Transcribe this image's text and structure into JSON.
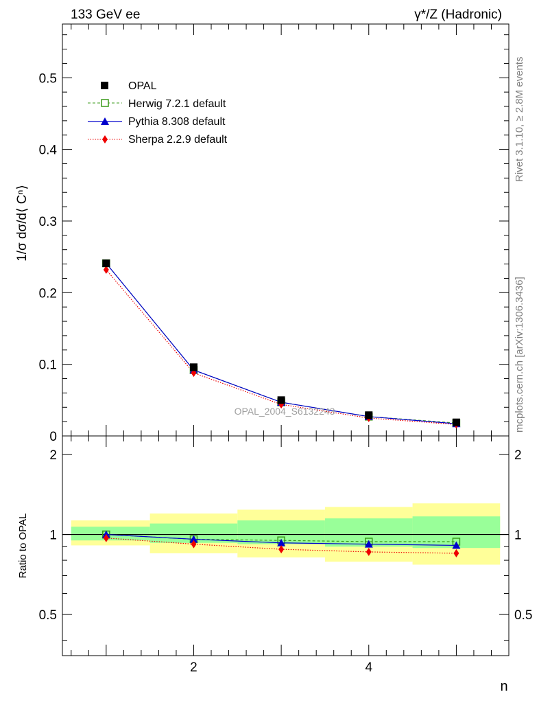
{
  "header": {
    "left": "133 GeV ee",
    "right": "γ*/Z (Hadronic)"
  },
  "side_labels": {
    "rivet": "Rivet 3.1.10, ≥ 2.8M events",
    "mcplots": "mcplots.cern.ch [arXiv:1306.3436]"
  },
  "watermark": "OPAL_2004_S6132243",
  "main_y_ticks": [
    "0",
    "0.1",
    "0.2",
    "0.3",
    "0.4",
    "0.5"
  ],
  "ratio_y_ticks": [
    "0.5",
    "1",
    "2"
  ],
  "x_ticks": [
    "2",
    "4"
  ],
  "legend": {
    "opal": "OPAL",
    "herwig": "Herwig 7.2.1 default",
    "pythia": "Pythia 8.308 default",
    "sherpa": "Sherpa 2.2.9 default"
  },
  "colors": {
    "data": "#000000",
    "herwig": "#3a9a1a",
    "pythia": "#0000cc",
    "sherpa": "#ee0000",
    "band_inner": "#99ff99",
    "band_outer": "#ffff99"
  },
  "chart_data": [
    {
      "type": "line",
      "ylabel": "1/σ dσ/d⟨ Cⁿ⟩",
      "xlabel": "n",
      "xlim": [
        0.5,
        5.6
      ],
      "ylim": [
        0,
        0.575
      ],
      "x": [
        1,
        2,
        3,
        4,
        5
      ],
      "series": [
        {
          "name": "OPAL",
          "values": [
            0.241,
            0.096,
            0.05,
            0.029,
            0.019
          ]
        },
        {
          "name": "Herwig 7.2.1 default",
          "values": [
            0.241,
            0.092,
            0.047,
            0.027,
            0.018
          ]
        },
        {
          "name": "Pythia 8.308 default",
          "values": [
            0.241,
            0.092,
            0.047,
            0.027,
            0.017
          ]
        },
        {
          "name": "Sherpa 2.2.9 default",
          "values": [
            0.232,
            0.088,
            0.044,
            0.025,
            0.016
          ]
        }
      ]
    },
    {
      "type": "line",
      "ylabel": "Ratio to OPAL",
      "xlabel": "n",
      "xlim": [
        0.5,
        5.6
      ],
      "ylim": [
        0.35,
        2.35
      ],
      "scale": "log",
      "x": [
        1,
        2,
        3,
        4,
        5
      ],
      "series": [
        {
          "name": "Herwig 7.2.1 default",
          "values": [
            1.0,
            0.96,
            0.95,
            0.94,
            0.94
          ]
        },
        {
          "name": "Pythia 8.308 default",
          "values": [
            1.0,
            0.96,
            0.93,
            0.92,
            0.91
          ]
        },
        {
          "name": "Sherpa 2.2.9 default",
          "values": [
            0.97,
            0.92,
            0.88,
            0.86,
            0.85
          ]
        }
      ],
      "bands": {
        "inner": [
          [
            0.95,
            1.07
          ],
          [
            0.93,
            1.1
          ],
          [
            0.92,
            1.13
          ],
          [
            0.9,
            1.15
          ],
          [
            0.89,
            1.17
          ]
        ],
        "outer": [
          [
            0.91,
            1.13
          ],
          [
            0.85,
            1.2
          ],
          [
            0.82,
            1.24
          ],
          [
            0.79,
            1.27
          ],
          [
            0.77,
            1.31
          ]
        ]
      }
    }
  ]
}
